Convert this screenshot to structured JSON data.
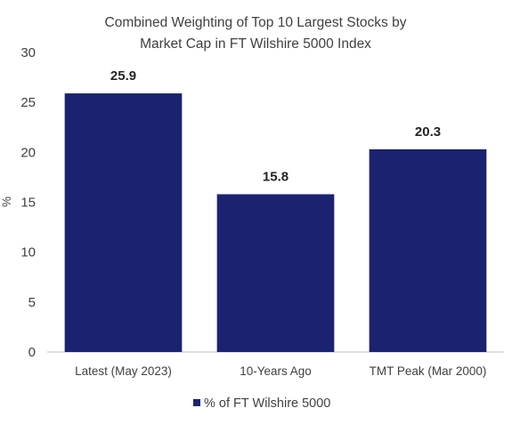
{
  "chart_data": {
    "type": "bar",
    "title_lines": [
      "Combined Weighting of Top 10 Largest Stocks by",
      "Market Cap in FT Wilshire 5000 Index"
    ],
    "ylabel": "%",
    "xlabel": "",
    "categories": [
      "Latest (May 2023)",
      "10-Years Ago",
      "TMT Peak (Mar 2000)"
    ],
    "series": [
      {
        "name": "% of FT Wilshire 5000",
        "values": [
          25.9,
          15.8,
          20.3
        ],
        "color": "#1b2370"
      }
    ],
    "data_labels": [
      "25.9",
      "15.8",
      "20.3"
    ],
    "ylim": [
      0,
      30
    ],
    "yticks": [
      0,
      5,
      10,
      15,
      20,
      25,
      30
    ],
    "grid": false,
    "legend_position": "bottom"
  }
}
